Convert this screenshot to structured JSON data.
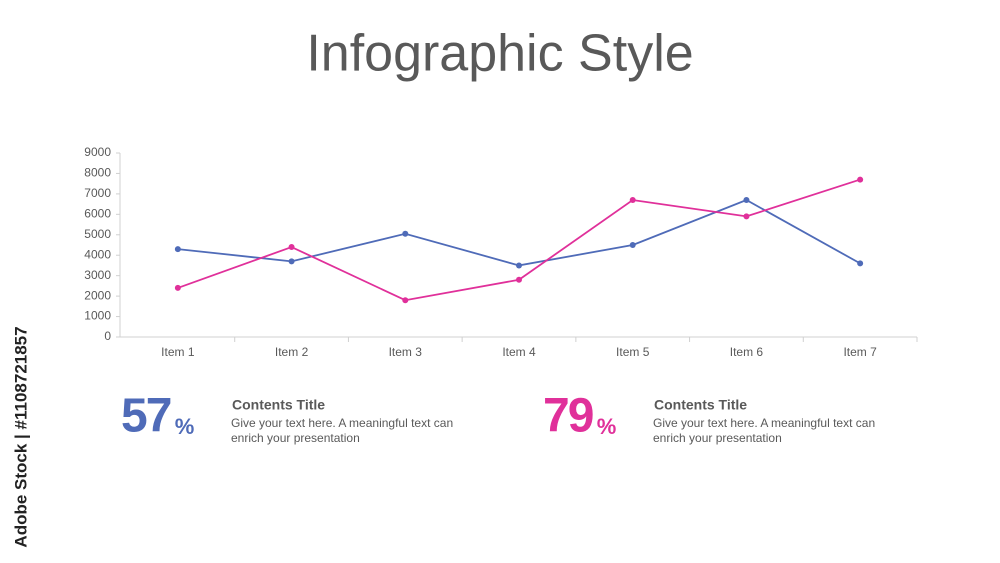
{
  "chart_data": {
    "type": "line",
    "title": "Infographic Style",
    "categories": [
      "Item 1",
      "Item 2",
      "Item 3",
      "Item 4",
      "Item 5",
      "Item 6",
      "Item 7"
    ],
    "series": [
      {
        "color": "#4f6bb8",
        "values": [
          4300,
          3700,
          5050,
          3500,
          4500,
          6700,
          3600
        ]
      },
      {
        "color": "#e0309a",
        "values": [
          2400,
          4400,
          1800,
          2800,
          6700,
          5900,
          7700
        ]
      }
    ],
    "ylim": [
      0,
      9000
    ],
    "yticks": [
      0,
      1000,
      2000,
      3000,
      4000,
      5000,
      6000,
      7000,
      8000,
      9000
    ],
    "grid": false
  },
  "stats": [
    {
      "value": 57,
      "unit": "%",
      "color": "#4f6bb8",
      "title": "Contents Title",
      "lines": [
        "Give your text here. A meaningful text can",
        "enrich your presentation"
      ]
    },
    {
      "value": 79,
      "unit": "%",
      "color": "#e0309a",
      "title": "Contents Title",
      "lines": [
        "Give your text here. A meaningful text can",
        "enrich your presentation"
      ]
    }
  ],
  "watermark": "Adobe Stock | #1108721857"
}
